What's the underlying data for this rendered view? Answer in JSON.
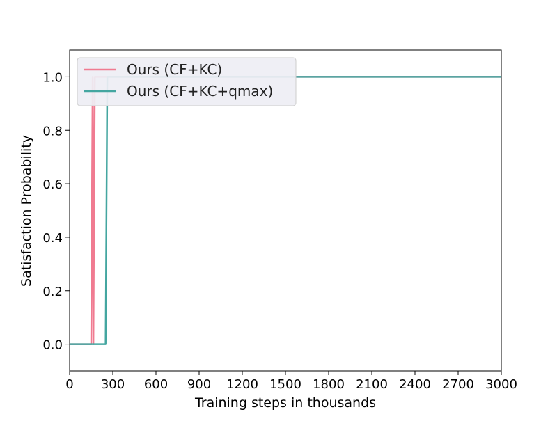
{
  "chart_data": {
    "type": "line",
    "title": "",
    "xlabel": "Training steps in thousands",
    "ylabel": "Satisfaction Probability",
    "xlim": [
      0,
      3000
    ],
    "ylim": [
      -0.1,
      1.1
    ],
    "xticks": [
      0,
      300,
      600,
      900,
      1200,
      1500,
      1800,
      2100,
      2400,
      2700,
      3000
    ],
    "xtick_labels": [
      "0",
      "300",
      "600",
      "900",
      "1200",
      "1500",
      "1800",
      "2100",
      "2400",
      "2700",
      "3000"
    ],
    "yticks": [
      0.0,
      0.2,
      0.4,
      0.6,
      0.8,
      1.0
    ],
    "ytick_labels": [
      "0.0",
      "0.2",
      "0.4",
      "0.6",
      "0.8",
      "1.0"
    ],
    "grid": false,
    "legend_position": "top-left",
    "series": [
      {
        "name": "Ours (CF+KC)",
        "color": "#f07b91",
        "x": [
          0,
          150,
          160,
          165,
          175,
          3000
        ],
        "y": [
          0.0,
          0.0,
          1.0,
          0.0,
          1.0,
          1.0
        ]
      },
      {
        "name": "Ours (CF+KC+qmax)",
        "color": "#44a6a0",
        "x": [
          0,
          250,
          262,
          3000
        ],
        "y": [
          0.0,
          0.0,
          1.0,
          1.0
        ]
      }
    ]
  }
}
